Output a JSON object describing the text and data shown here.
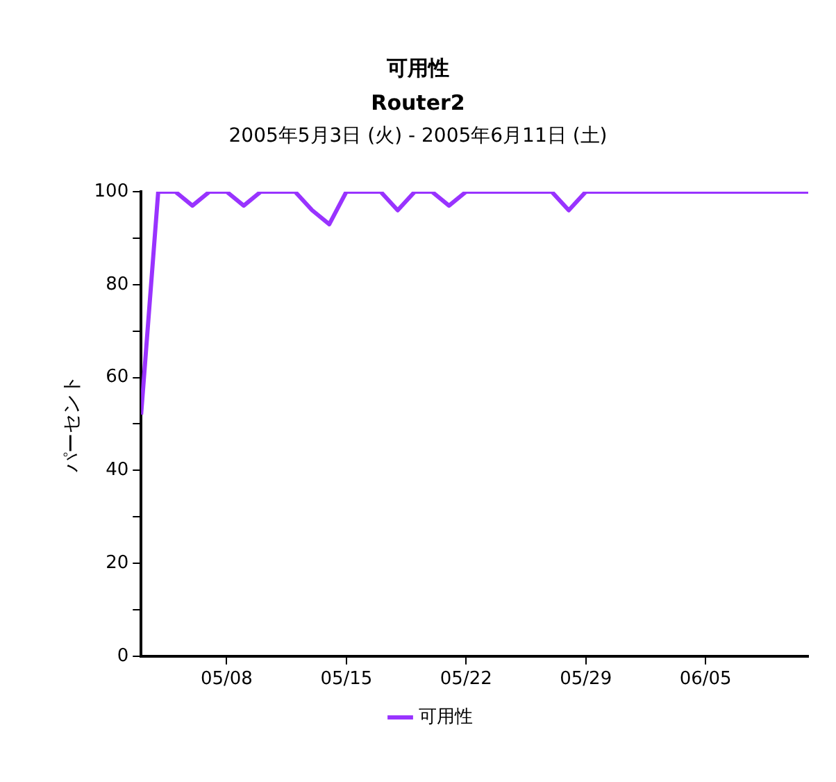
{
  "chart_data": {
    "type": "line",
    "title": "可用性",
    "subtitle": "Router2\n2005年5月3日 (火) - 2005年6月11日 (土)",
    "ylabel": "パーセント",
    "x": [
      "2005-05-03",
      "2005-05-04",
      "2005-05-05",
      "2005-05-06",
      "2005-05-07",
      "2005-05-08",
      "2005-05-09",
      "2005-05-10",
      "2005-05-11",
      "2005-05-12",
      "2005-05-13",
      "2005-05-14",
      "2005-05-15",
      "2005-05-16",
      "2005-05-17",
      "2005-05-18",
      "2005-05-19",
      "2005-05-20",
      "2005-05-21",
      "2005-05-22",
      "2005-05-23",
      "2005-05-24",
      "2005-05-25",
      "2005-05-26",
      "2005-05-27",
      "2005-05-28",
      "2005-05-29",
      "2005-05-30",
      "2005-05-31",
      "2005-06-01",
      "2005-06-02",
      "2005-06-03",
      "2005-06-04",
      "2005-06-05",
      "2005-06-06",
      "2005-06-07",
      "2005-06-08",
      "2005-06-09",
      "2005-06-10",
      "2005-06-11"
    ],
    "series": [
      {
        "name": "可用性",
        "color": "#9933ff",
        "values": [
          52,
          100,
          100,
          97,
          100,
          100,
          97,
          100,
          100,
          100,
          96,
          93,
          100,
          100,
          100,
          96,
          100,
          100,
          97,
          100,
          100,
          100,
          100,
          100,
          100,
          96,
          100,
          100,
          100,
          100,
          100,
          100,
          100,
          100,
          100,
          100,
          100,
          100,
          100,
          100
        ]
      }
    ],
    "xlim": [
      "2005-05-03",
      "2005-06-11"
    ],
    "xticks": [
      {
        "value": "2005-05-08",
        "label": "05/08"
      },
      {
        "value": "2005-05-15",
        "label": "05/15"
      },
      {
        "value": "2005-05-22",
        "label": "05/22"
      },
      {
        "value": "2005-05-29",
        "label": "05/29"
      },
      {
        "value": "2005-06-05",
        "label": "06/05"
      }
    ],
    "ylim": [
      0,
      100
    ],
    "yticks": [
      0,
      {
        "value": 10,
        "label": null
      },
      20,
      {
        "value": 30,
        "label": null
      },
      40,
      {
        "value": 50,
        "label": null
      },
      60,
      {
        "value": 70,
        "label": null
      },
      80,
      {
        "value": 90,
        "label": null
      },
      100
    ],
    "grid": false,
    "legend": "bottom",
    "marker": "none",
    "line_style": "solid"
  }
}
